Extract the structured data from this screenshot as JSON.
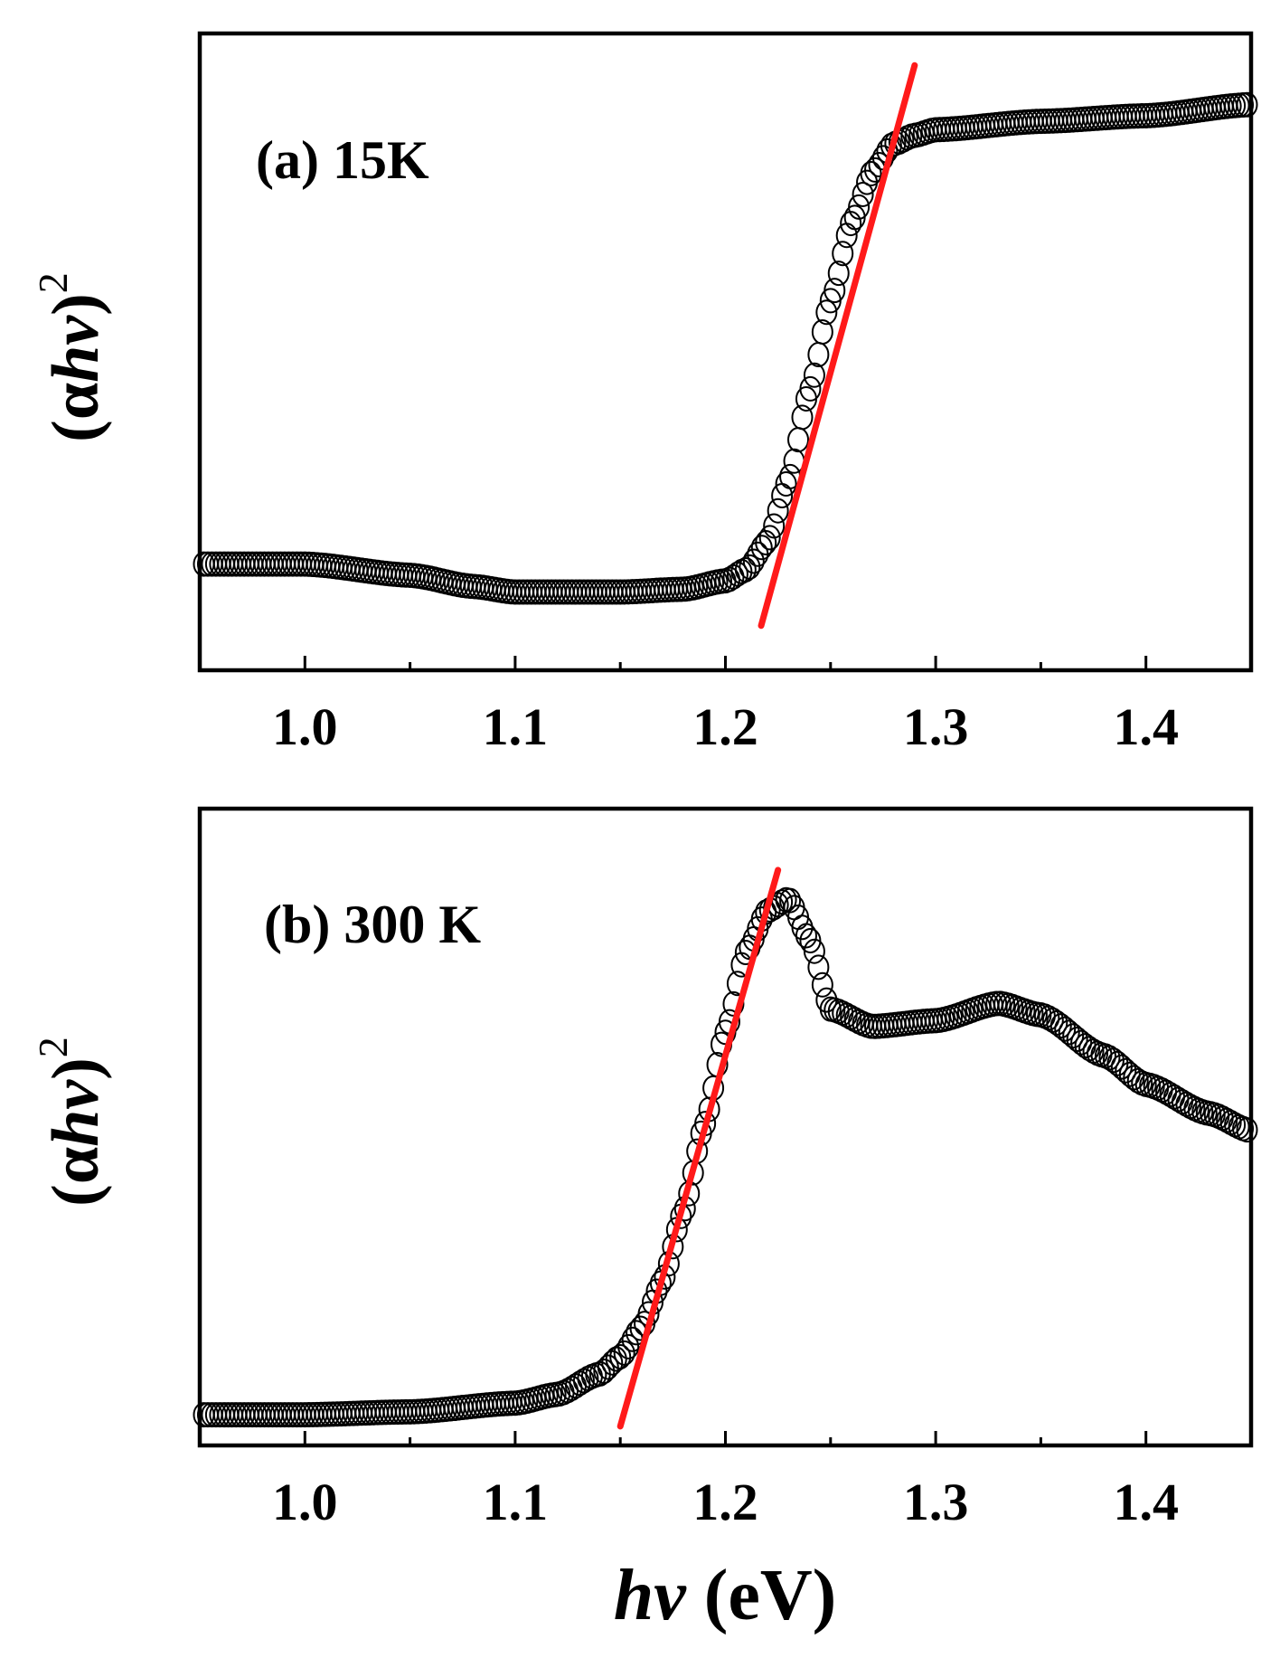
{
  "figure": {
    "xlabel_italic": "hv",
    "xlabel_unit": " (eV)"
  },
  "chart_data": [
    {
      "type": "scatter",
      "panel_label": "(a) 15K",
      "ylabel_paren_open": "(",
      "ylabel_alpha": "α",
      "ylabel_hv": "hv",
      "ylabel_paren_close": ")",
      "ylabel_power": "2",
      "xlabel": "hv (eV)",
      "xlim": [
        0.95,
        1.45
      ],
      "ylim": [
        0,
        1
      ],
      "x_ticks": [
        1.0,
        1.1,
        1.2,
        1.3,
        1.4
      ],
      "x_tick_labels": [
        "1.0",
        "1.1",
        "1.2",
        "1.3",
        "1.4"
      ],
      "x_minor_ticks": [
        1.05,
        1.15,
        1.25,
        1.35
      ],
      "y_tick_labels": [],
      "series": [
        {
          "name": "data",
          "marker": "open-circle",
          "color": "#000000",
          "x": [
            0.95,
            1.0,
            1.05,
            1.08,
            1.1,
            1.15,
            1.18,
            1.2,
            1.21,
            1.22,
            1.23,
            1.24,
            1.25,
            1.26,
            1.27,
            1.28,
            1.29,
            1.3,
            1.35,
            1.4,
            1.45
          ],
          "y": [
            0.11,
            0.11,
            0.09,
            0.07,
            0.06,
            0.06,
            0.065,
            0.08,
            0.1,
            0.15,
            0.26,
            0.42,
            0.58,
            0.72,
            0.81,
            0.86,
            0.875,
            0.885,
            0.9,
            0.91,
            0.93
          ]
        },
        {
          "name": "linear fit",
          "style": "line",
          "color": "#ff1a1a",
          "x": [
            1.217,
            1.29
          ],
          "y": [
            0.0,
            1.0
          ]
        }
      ]
    },
    {
      "type": "scatter",
      "panel_label": "(b) 300 K",
      "ylabel_paren_open": "(",
      "ylabel_alpha": "α",
      "ylabel_hv": "hv",
      "ylabel_paren_close": ")",
      "ylabel_power": "2",
      "xlabel": "hv (eV)",
      "xlim": [
        0.95,
        1.45
      ],
      "ylim": [
        0,
        1
      ],
      "x_ticks": [
        1.0,
        1.1,
        1.2,
        1.3,
        1.4
      ],
      "x_tick_labels": [
        "1.0",
        "1.1",
        "1.2",
        "1.3",
        "1.4"
      ],
      "x_minor_ticks": [
        1.05,
        1.15,
        1.25,
        1.35
      ],
      "y_tick_labels": [],
      "series": [
        {
          "name": "data",
          "marker": "open-circle",
          "color": "#000000",
          "x": [
            0.95,
            1.0,
            1.05,
            1.1,
            1.12,
            1.14,
            1.15,
            1.16,
            1.17,
            1.18,
            1.19,
            1.2,
            1.21,
            1.22,
            1.23,
            1.24,
            1.25,
            1.27,
            1.3,
            1.33,
            1.35,
            1.38,
            1.4,
            1.43,
            1.45
          ],
          "y": [
            0.02,
            0.02,
            0.025,
            0.04,
            0.055,
            0.09,
            0.12,
            0.17,
            0.25,
            0.37,
            0.52,
            0.68,
            0.82,
            0.89,
            0.91,
            0.84,
            0.72,
            0.69,
            0.7,
            0.73,
            0.71,
            0.64,
            0.59,
            0.54,
            0.51
          ]
        },
        {
          "name": "linear fit",
          "style": "line",
          "color": "#ff1a1a",
          "x": [
            1.15,
            1.225
          ],
          "y": [
            0.0,
            0.96
          ]
        }
      ]
    }
  ]
}
